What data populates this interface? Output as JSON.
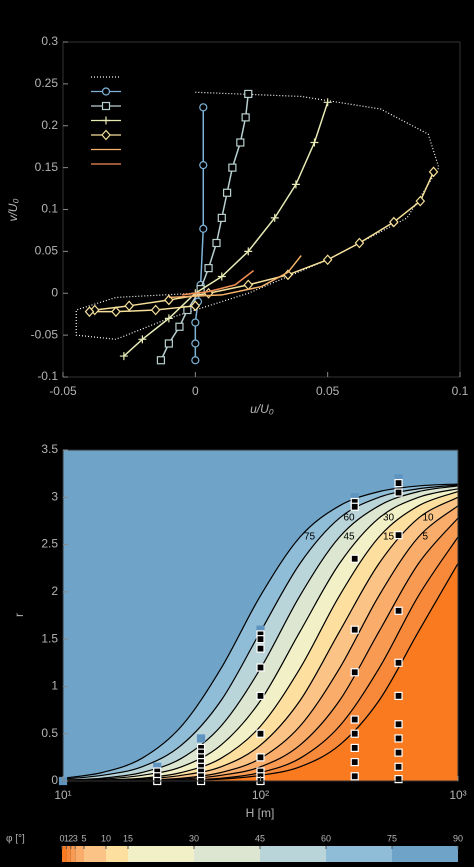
{
  "chart_data": [
    {
      "type": "line",
      "xlabel": "u/U₀",
      "ylabel": "v/U₀",
      "xlim": [
        -0.05,
        0.1
      ],
      "ylim": [
        -0.1,
        0.3
      ],
      "xticks": [
        -0.05,
        0,
        0.05,
        0.1
      ],
      "yticks": [
        -0.1,
        -0.05,
        0,
        0.05,
        0.1,
        0.15,
        0.2,
        0.25,
        0.3
      ],
      "legend": "upper left",
      "series": [
        {
          "color": "#ffffff",
          "marker": "none",
          "linestyle": "dotted",
          "x": [
            0,
            0.04,
            0.07,
            0.088,
            0.092,
            0.08,
            0.05,
            0.02,
            -0.01,
            -0.03,
            -0.045,
            -0.045,
            -0.03,
            0
          ],
          "values": [
            0.24,
            0.235,
            0.22,
            0.19,
            0.15,
            0.09,
            0.04,
            0,
            -0.03,
            -0.055,
            -0.05,
            -0.02,
            -0.005,
            0
          ]
        },
        {
          "color": "#7fb4d8",
          "marker": "circle",
          "linestyle": "solid",
          "x": [
            0.003,
            0.003,
            0.003,
            0.002,
            0.001,
            0,
            0,
            0
          ],
          "values": [
            0.222,
            0.153,
            0.077,
            0.01,
            -0.01,
            -0.035,
            -0.06,
            -0.08
          ]
        },
        {
          "color": "#b8d0cf",
          "marker": "square",
          "linestyle": "solid",
          "x": [
            0.02,
            0.019,
            0.017,
            0.014,
            0.012,
            0.01,
            0.008,
            0.005,
            0.002,
            -0.003,
            -0.006,
            -0.01,
            -0.013
          ],
          "values": [
            0.238,
            0.21,
            0.18,
            0.15,
            0.12,
            0.09,
            0.06,
            0.03,
            0.005,
            -0.02,
            -0.04,
            -0.06,
            -0.08
          ]
        },
        {
          "color": "#e8ebb5",
          "marker": "plus",
          "linestyle": "solid",
          "x": [
            0.05,
            0.045,
            0.038,
            0.03,
            0.02,
            0.01,
            0,
            -0.01,
            -0.02,
            -0.027
          ],
          "values": [
            0.228,
            0.18,
            0.13,
            0.09,
            0.05,
            0.02,
            0,
            -0.03,
            -0.055,
            -0.075
          ]
        },
        {
          "color": "#f6e09a",
          "marker": "diamond",
          "linestyle": "solid",
          "x": [
            0.09,
            0.085,
            0.075,
            0.062,
            0.05,
            0.035,
            0.02,
            0.005,
            -0.01,
            -0.025,
            -0.038,
            -0.04,
            -0.03,
            -0.015,
            0
          ],
          "values": [
            0.145,
            0.11,
            0.085,
            0.06,
            0.04,
            0.022,
            0.01,
            0,
            -0.008,
            -0.015,
            -0.02,
            -0.022,
            -0.022,
            -0.02,
            -0.015
          ]
        },
        {
          "color": "#f7b36b",
          "marker": "none",
          "linestyle": "solid",
          "x": [
            0.04,
            0.035,
            0.025,
            0.01,
            -0.01
          ],
          "values": [
            0.045,
            0.025,
            0.008,
            -0.002,
            -0.005
          ]
        },
        {
          "color": "#f28c55",
          "marker": "none",
          "linestyle": "solid",
          "x": [
            0.022,
            0.015,
            0.005,
            -0.005
          ],
          "values": [
            0.027,
            0.01,
            0.002,
            -0.002
          ]
        }
      ]
    },
    {
      "type": "contour",
      "xlabel": "H [m]",
      "ylabel": "r",
      "xscale": "log",
      "xlim": [
        10,
        1000
      ],
      "ylim": [
        0,
        3.5
      ],
      "xticks": [
        {
          "value": 10,
          "label": "10¹"
        },
        {
          "value": 100,
          "label": "10²"
        },
        {
          "value": 1000,
          "label": "10³"
        }
      ],
      "yticks": [
        0,
        0.5,
        1,
        1.5,
        2,
        2.5,
        3,
        3.5
      ],
      "contour_x": [
        10,
        15.8,
        25.1,
        39.8,
        63.1,
        100,
        158.5,
        251.2,
        398.1,
        631,
        1000
      ],
      "contours": [
        {
          "level": 75,
          "y": [
            0.03,
            0.09,
            0.24,
            0.58,
            1.19,
            1.96,
            2.58,
            2.91,
            3.06,
            3.12,
            3.14
          ]
        },
        {
          "level": 60,
          "y": [
            0.02,
            0.06,
            0.15,
            0.38,
            0.85,
            1.58,
            2.3,
            2.78,
            3.0,
            3.09,
            3.13
          ]
        },
        {
          "level": 45,
          "y": [
            0.01,
            0.03,
            0.09,
            0.24,
            0.58,
            1.19,
            1.96,
            2.58,
            2.91,
            3.06,
            3.12
          ]
        },
        {
          "level": 30,
          "y": [
            0.01,
            0.02,
            0.06,
            0.15,
            0.38,
            0.85,
            1.58,
            2.3,
            2.78,
            3.0,
            3.09
          ]
        },
        {
          "level": 15,
          "y": [
            0,
            0.01,
            0.03,
            0.09,
            0.24,
            0.58,
            1.19,
            1.96,
            2.58,
            2.91,
            3.06
          ]
        },
        {
          "level": 10,
          "y": [
            0,
            0.01,
            0.02,
            0.06,
            0.15,
            0.38,
            0.85,
            1.58,
            2.3,
            2.78,
            3.0
          ]
        },
        {
          "level": 5,
          "y": [
            0,
            0,
            0.01,
            0.03,
            0.09,
            0.24,
            0.58,
            1.19,
            1.96,
            2.58,
            2.91
          ]
        },
        {
          "level": 3,
          "y": [
            0,
            0,
            0.01,
            0.02,
            0.06,
            0.15,
            0.38,
            0.85,
            1.58,
            2.3,
            2.78
          ]
        },
        {
          "level": 2,
          "y": [
            0,
            0,
            0,
            0.01,
            0.03,
            0.09,
            0.24,
            0.58,
            1.19,
            1.96,
            2.58
          ]
        },
        {
          "level": 1,
          "y": [
            0,
            0,
            0,
            0.01,
            0.02,
            0.06,
            0.15,
            0.38,
            0.85,
            1.58,
            2.3
          ]
        }
      ],
      "series": [
        {
          "color": "#5f94c0",
          "marker_fill": true,
          "x": [
            10,
            30,
            50,
            100,
            300,
            500
          ],
          "values": [
            0,
            0.15,
            0.45,
            1.6,
            3.0,
            3.2
          ]
        },
        {
          "color": "#ffffff",
          "marker_fill": false,
          "x": [
            30,
            30,
            30,
            50,
            50,
            50,
            50,
            50,
            50,
            50,
            50,
            100,
            100,
            100,
            100,
            100,
            100,
            100,
            100,
            100,
            100,
            300,
            300,
            300,
            300,
            300,
            300,
            300,
            300,
            300,
            300,
            500,
            500,
            500,
            500,
            500,
            500,
            500,
            500,
            500,
            500,
            500
          ],
          "values": [
            0.1,
            0.05,
            0,
            0.35,
            0.3,
            0.25,
            0.2,
            0.15,
            0.1,
            0.05,
            0,
            1.55,
            1.5,
            1.4,
            1.2,
            0.9,
            0.5,
            0.25,
            0.1,
            0.05,
            0,
            2.95,
            2.9,
            2.35,
            1.6,
            1.15,
            0.65,
            0.5,
            0.35,
            0.2,
            0.05,
            3.15,
            3.05,
            2.6,
            1.8,
            1.25,
            0.9,
            0.6,
            0.45,
            0.3,
            0.15,
            0.02
          ]
        }
      ],
      "colorbar": {
        "label": "φ [°]",
        "lim": [
          0,
          90
        ],
        "ticks": [
          0,
          1,
          2,
          3,
          5,
          10,
          15,
          30,
          45,
          60,
          75,
          90
        ],
        "colors": [
          "#f97a1f",
          "#f8893a",
          "#f99a52",
          "#faac6b",
          "#fbc486",
          "#fde0a0",
          "#f2f0c6",
          "#dce6d0",
          "#b9d5d9",
          "#8fbcd6",
          "#6fa4c8"
        ]
      }
    }
  ]
}
